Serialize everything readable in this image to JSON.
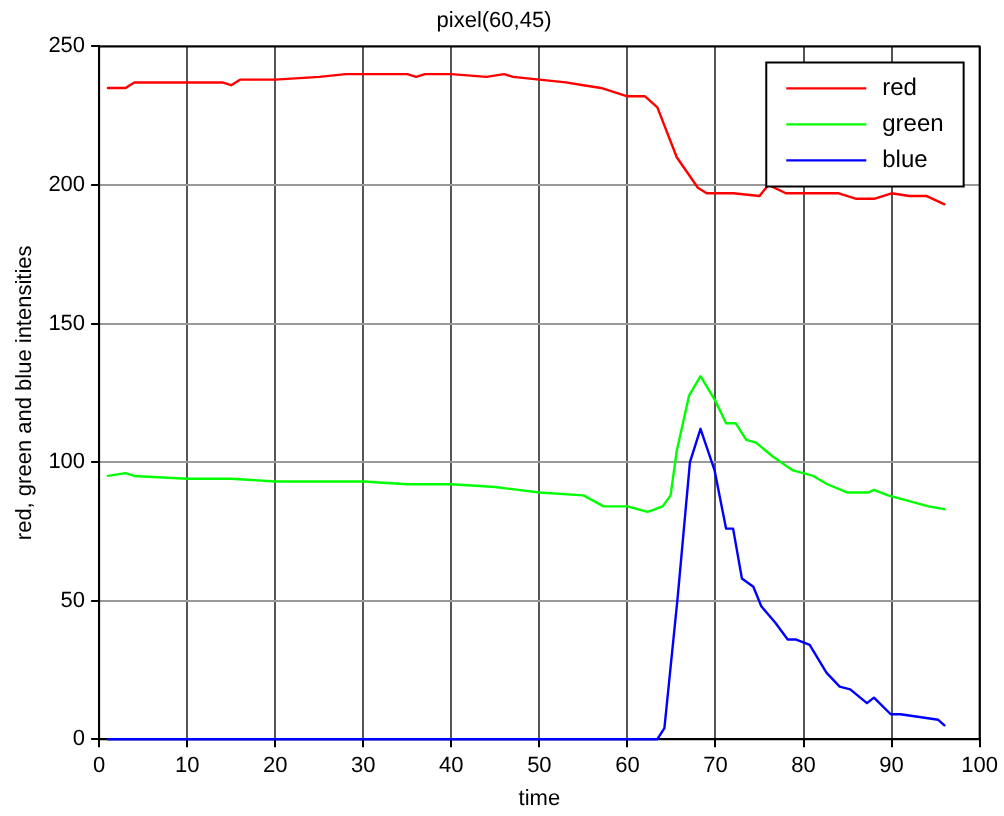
{
  "chart_data": {
    "type": "line",
    "title": "pixel(60,45)",
    "xlabel": "time",
    "ylabel": "red, green and blue intensities",
    "xlim": [
      0,
      100
    ],
    "xticks": [
      0,
      10,
      20,
      30,
      40,
      50,
      60,
      70,
      80,
      90,
      100
    ],
    "ylim": [
      0,
      250
    ],
    "yticks": [
      0,
      50,
      100,
      150,
      200,
      250
    ],
    "grid": true,
    "legend": "top right",
    "line_style": "solid",
    "series": [
      {
        "name": "red",
        "color": "#ff0000",
        "x": [
          1,
          3,
          4,
          10,
          14,
          15,
          16,
          18,
          20,
          25,
          28,
          35,
          36,
          37,
          40,
          44,
          46,
          47,
          50,
          53,
          55,
          57,
          60,
          62,
          63.4,
          65.6,
          68,
          69,
          72,
          75,
          76,
          78,
          80,
          84,
          86,
          88,
          90,
          92,
          94,
          96
        ],
        "values": [
          235,
          235,
          237,
          237,
          237,
          236,
          238,
          238,
          238,
          239,
          240,
          240,
          239,
          240,
          240,
          239,
          240,
          239,
          238,
          237,
          236,
          235,
          232,
          232,
          228,
          210,
          199,
          197,
          197,
          196,
          200,
          197,
          197,
          197,
          195,
          195,
          197,
          196,
          196,
          193
        ]
      },
      {
        "name": "green",
        "color": "#00ff00",
        "x": [
          1,
          3,
          4,
          10,
          15,
          20,
          30,
          35,
          40,
          45,
          50,
          55,
          57.3,
          60,
          62.3,
          64,
          64.9,
          65.6,
          67,
          68.3,
          70,
          71.2,
          72.3,
          73.5,
          74.6,
          76.5,
          78.8,
          81.1,
          82.7,
          85,
          87.3,
          88,
          89.6,
          91.9,
          94.2,
          96
        ],
        "values": [
          95,
          96,
          95,
          94,
          94,
          93,
          93,
          92,
          92,
          91,
          89,
          88,
          84,
          84,
          82,
          84,
          88,
          104,
          124,
          131,
          122,
          114,
          114,
          108,
          107,
          102,
          97,
          95,
          92,
          89,
          89,
          90,
          88,
          86,
          84,
          83
        ]
      },
      {
        "name": "blue",
        "color": "#0000ff",
        "x": [
          1,
          63.4,
          64.2,
          65.7,
          67.1,
          68.3,
          69.9,
          71.2,
          72,
          73,
          74.3,
          75.2,
          76.8,
          78.2,
          79.1,
          80.7,
          82.6,
          84.1,
          85.3,
          87.2,
          88,
          89.9,
          91,
          95.3,
          96
        ],
        "values": [
          0,
          0,
          4,
          51,
          100,
          112,
          97,
          76,
          76,
          58,
          55,
          48,
          42,
          36,
          36,
          34,
          24,
          19,
          18,
          13,
          15,
          9,
          9,
          7,
          5
        ]
      }
    ]
  }
}
